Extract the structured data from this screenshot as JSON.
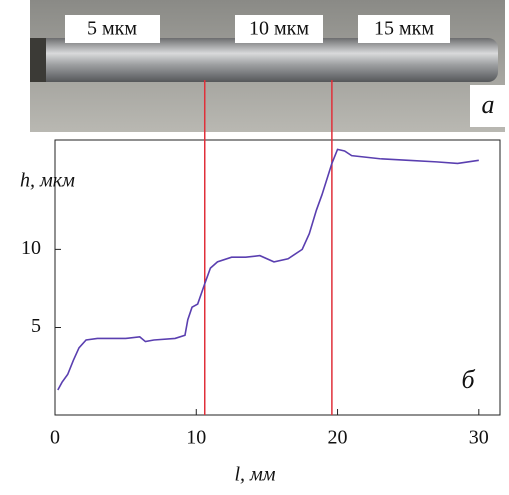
{
  "chart_data": {
    "type": "line",
    "photo_labels": [
      "5 мкм",
      "10 мкм",
      "15 мкм"
    ],
    "photo_panel": "а",
    "chart_panel": "б",
    "xlabel": "l, мм",
    "ylabel": "h, мкм",
    "x": [
      0.2,
      0.5,
      0.9,
      1.3,
      1.7,
      2.2,
      3,
      5,
      6,
      6.4,
      7,
      8.5,
      9.2,
      9.4,
      9.7,
      10.1,
      10.6,
      11,
      11.5,
      12.5,
      13.5,
      14.5,
      15.5,
      16.5,
      17.5,
      18,
      18.5,
      18.9,
      19.6,
      20,
      20.5,
      21,
      23,
      25,
      27,
      28.5,
      30
    ],
    "series": [
      {
        "color": "#5a3fb0",
        "values": [
          1,
          1.5,
          2,
          2.9,
          3.7,
          4.2,
          4.3,
          4.3,
          4.4,
          4.1,
          4.2,
          4.3,
          4.5,
          5.5,
          6.3,
          6.5,
          7.8,
          8.8,
          9.2,
          9.5,
          9.5,
          9.6,
          9.2,
          9.4,
          10,
          11,
          12.5,
          13.5,
          15.5,
          16.4,
          16.3,
          16,
          15.8,
          15.7,
          15.6,
          15.5,
          15.7
        ]
      }
    ],
    "markers": [
      10.6,
      19.6
    ],
    "marker_color": "#e0303a",
    "xlim": [
      0,
      31.5
    ],
    "ylim": [
      -0.6,
      17
    ],
    "xticks": [
      0,
      10,
      20,
      30
    ],
    "yticks": [
      5,
      10
    ]
  }
}
